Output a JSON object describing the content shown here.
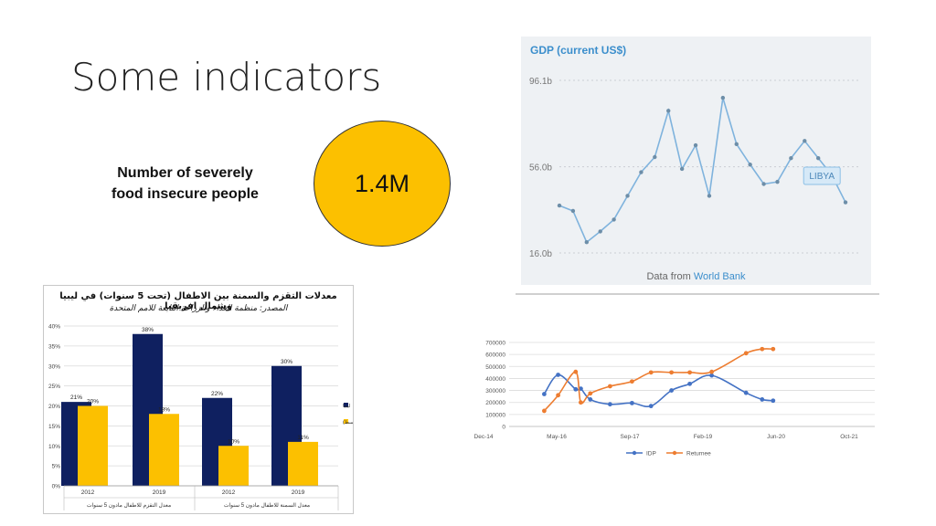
{
  "slide": {
    "title": "Some indicators",
    "indicator_label": "Number of severely food insecure people",
    "indicator_value": "1.4M",
    "colors": {
      "circle": "#fcc000"
    }
  },
  "gdp": {
    "title": "GDP (current US$)",
    "source_prefix": "Data from ",
    "source_link": "World Bank",
    "country_label": "LIBYA"
  },
  "bar_chart": {
    "title": "معدلات التقزم والسمنة بين الاطفال (تحت 5 سنوات) في ليبيا وشمال افريقيا",
    "subtitle": "المصدر: منظمة الغذاء والزراعة التابعة للامم المتحدة"
  },
  "chart_data": [
    {
      "type": "line",
      "title": "GDP (current US$)",
      "y_ticks": [
        "16.0b",
        "56.0b",
        "96.1b"
      ],
      "ylim": [
        16.0,
        96.1
      ],
      "grid": true,
      "series": [
        {
          "values": [
            38.0,
            35.5,
            21.0,
            26.0,
            31.5,
            42.5,
            53.5,
            60.5,
            82.0,
            55.0,
            66.0,
            42.5,
            88.0,
            66.5,
            57.0,
            48.0,
            49.0,
            60.0,
            68.0,
            60.0,
            52.0,
            39.5
          ]
        }
      ]
    },
    {
      "type": "bar",
      "title": "معدلات التقزم والسمنة بين الاطفال (تحت 5 سنوات) في ليبيا وشمال افريقيا",
      "subtitle": "المصدر: منظمة الغذاء والزراعة التابعة للامم المتحدة",
      "groups": [
        "معدل التقزم للاطفال مادون 5 سنوات",
        "معدل السمنة للاطفال مادون 5 سنوات"
      ],
      "categories": [
        "2012",
        "2019",
        "2012",
        "2019"
      ],
      "series": [
        {
          "name": "ليبيا",
          "color": "#0f2060",
          "values": [
            21,
            38,
            22,
            30
          ],
          "labels": [
            "21%",
            "38%",
            "22%",
            "30%"
          ]
        },
        {
          "name": "شمال افريقيا (متوسط)",
          "color": "#fcc000",
          "values": [
            20,
            18,
            10,
            11
          ],
          "labels": [
            "20%",
            "18%",
            "10%",
            "11%"
          ]
        }
      ],
      "y_ticks": [
        "0%",
        "5%",
        "10%",
        "15%",
        "20%",
        "25%",
        "30%",
        "35%",
        "40%"
      ],
      "ylim": [
        0,
        40
      ],
      "legend": "right"
    },
    {
      "type": "line",
      "x_ticks": [
        "Dec-14",
        "May-16",
        "Sep-17",
        "Feb-19",
        "Jun-20",
        "Oct-21"
      ],
      "x_tick_positions": [
        0,
        1,
        2,
        3,
        4,
        5
      ],
      "y_ticks": [
        "0",
        "100000",
        "200000",
        "300000",
        "400000",
        "500000",
        "600000",
        "700000"
      ],
      "ylim": [
        0,
        700000
      ],
      "legend": "bottom",
      "series": [
        {
          "name": "IDP",
          "color": "#4472c4",
          "x": [
            0.48,
            0.67,
            0.91,
            0.98,
            1.11,
            1.38,
            1.68,
            1.94,
            2.22,
            2.47,
            2.77,
            3.24,
            3.46,
            3.61
          ],
          "values": [
            270000,
            430000,
            310000,
            315000,
            225000,
            185000,
            195000,
            170000,
            300000,
            355000,
            425000,
            280000,
            225000,
            215000
          ]
        },
        {
          "name": "Returnee",
          "color": "#ed7d31",
          "x": [
            0.48,
            0.67,
            0.91,
            0.98,
            1.11,
            1.38,
            1.68,
            1.94,
            2.22,
            2.47,
            2.77,
            3.24,
            3.46,
            3.61
          ],
          "values": [
            130000,
            260000,
            455000,
            200000,
            275000,
            335000,
            375000,
            450000,
            450000,
            450000,
            455000,
            610000,
            645000,
            645000
          ]
        }
      ]
    }
  ]
}
